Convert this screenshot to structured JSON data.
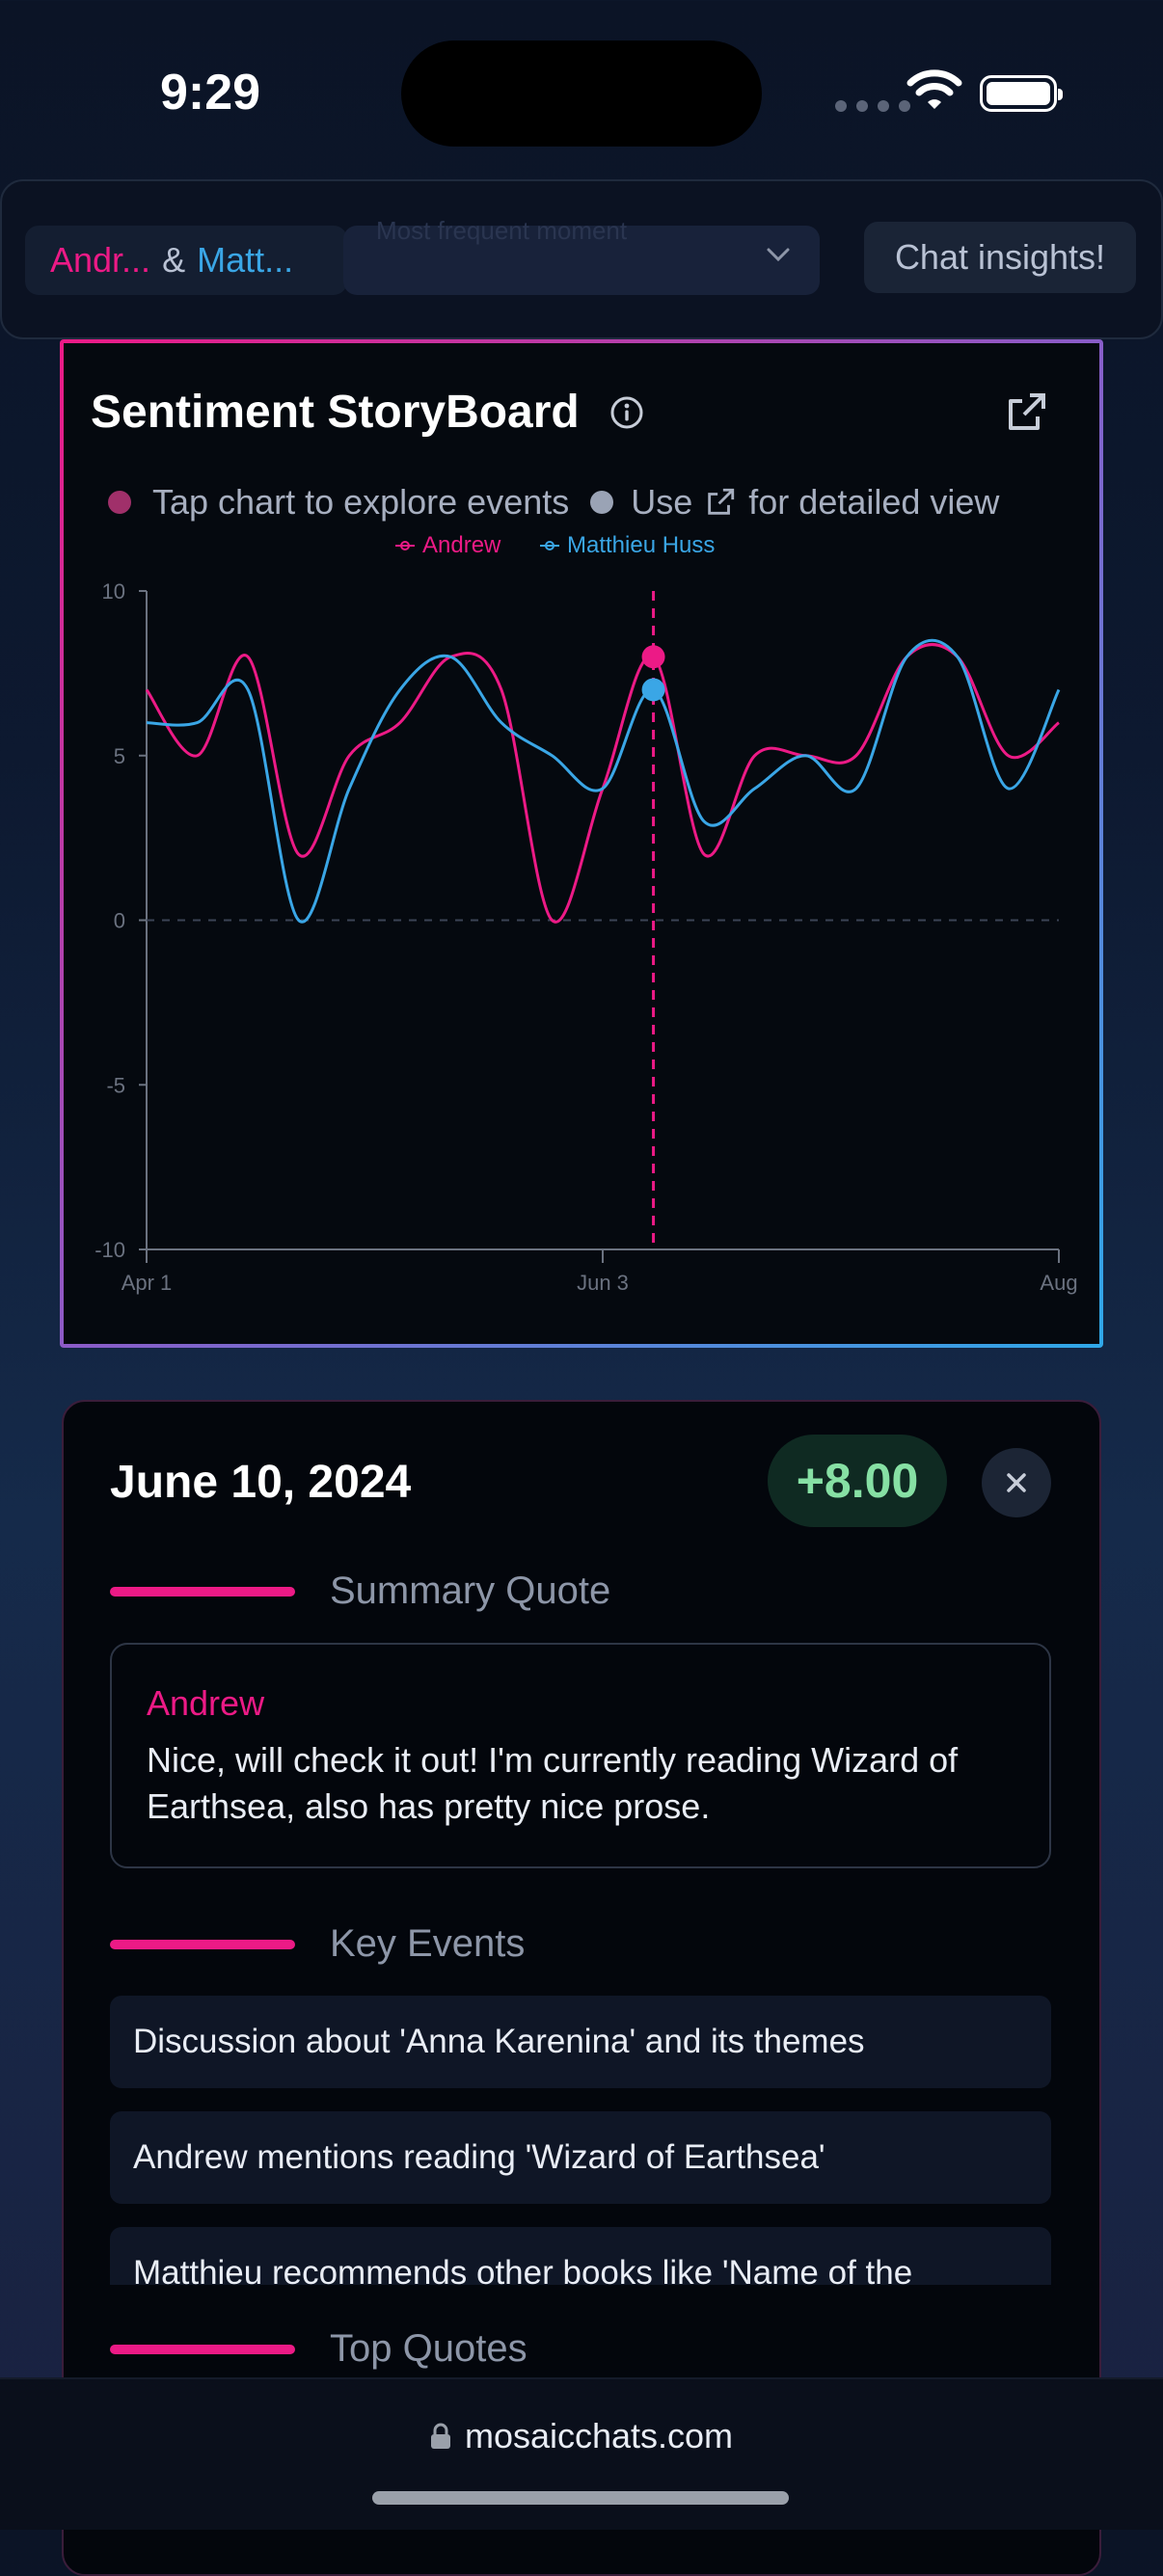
{
  "status_bar": {
    "time": "9:29"
  },
  "top_bar": {
    "participant_a": "Andr...",
    "amp": "&",
    "participant_b": "Matt...",
    "select_value": "Most frequent moment",
    "insights_button": "Chat insights!"
  },
  "storyboard": {
    "title": "Sentiment StoryBoard",
    "hint_1": "Tap chart to explore events",
    "hint_2_pre": "Use",
    "hint_2_post": "for detailed view"
  },
  "chart_data": {
    "type": "line",
    "x": [
      "Apr 1",
      "Apr 8",
      "Apr 15",
      "Apr 22",
      "Apr 29",
      "May 6",
      "May 13",
      "May 20",
      "May 27",
      "Jun 3",
      "Jun 10",
      "Jun 17",
      "Jun 24",
      "Jul 1",
      "Jul 8",
      "Jul 15",
      "Jul 22",
      "Jul 29",
      "Aug 5"
    ],
    "x_ticks": [
      "Apr 1",
      "Jun 3",
      "Aug"
    ],
    "y_ticks": [
      "10",
      "5",
      "0",
      "-5",
      "-10"
    ],
    "ylim": [
      -10,
      10
    ],
    "series": [
      {
        "name": "Andrew",
        "color": "#ec1a86",
        "values": [
          7,
          5,
          8,
          2,
          5,
          6,
          8,
          7,
          0,
          4,
          8,
          2,
          5,
          5,
          5,
          8,
          8,
          5,
          6
        ]
      },
      {
        "name": "Matthieu Huss",
        "color": "#3aa6e6",
        "values": [
          6,
          6,
          7,
          0,
          4,
          7,
          8,
          6,
          5,
          4,
          7,
          3,
          4,
          5,
          4,
          8,
          8,
          4,
          7
        ]
      }
    ],
    "highlight": {
      "index": 10,
      "andrew": 8,
      "matthieu": 7
    },
    "baseline": 0
  },
  "detail": {
    "date": "June 10, 2024",
    "score": "+8.00",
    "summary_label": "Summary Quote",
    "quote_author": "Andrew",
    "quote_text": "Nice, will check it out! I'm currently reading Wizard of Earthsea, also has pretty nice prose.",
    "key_events_label": "Key Events",
    "events": [
      "Discussion about 'Anna Karenina' and its themes",
      "Andrew mentions reading 'Wizard of Earthsea'",
      "Matthieu recommends other books like 'Name of the"
    ],
    "top_quotes_label": "Top Quotes"
  },
  "browser": {
    "url": "mosaicchats.com"
  }
}
